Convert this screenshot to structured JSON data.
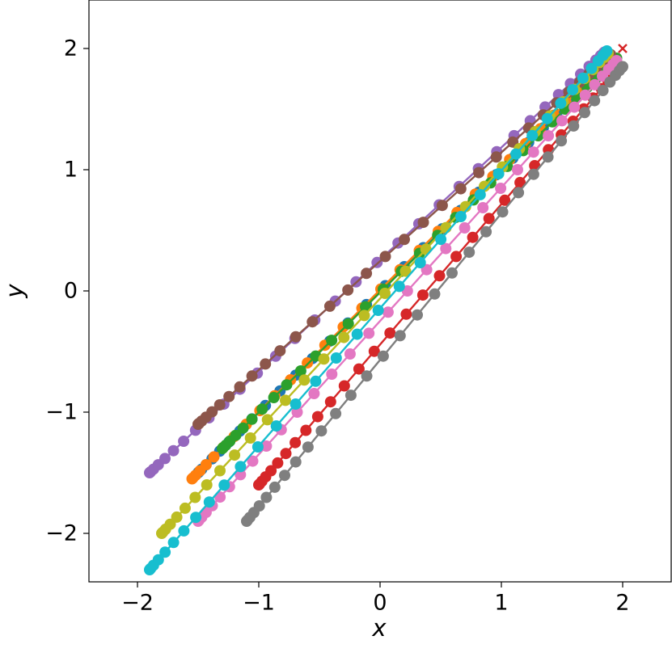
{
  "chart_data": {
    "type": "line",
    "title": "",
    "xlabel": "x",
    "ylabel": "y",
    "xlim": [
      -2.4,
      2.4
    ],
    "ylim": [
      -2.4,
      2.4
    ],
    "xticks": [
      -2,
      -1,
      0,
      1,
      2
    ],
    "yticks": [
      -2,
      -1,
      0,
      1,
      2
    ],
    "xtick_labels": [
      "−2",
      "−1",
      "0",
      "1",
      "2"
    ],
    "ytick_labels": [
      "−2",
      "−1",
      "0",
      "1",
      "2"
    ],
    "grid": false,
    "legend": "none",
    "target": {
      "x": 2.0,
      "y": 2.0,
      "marker": "x",
      "color": "#d62728"
    },
    "series": [
      {
        "color": "#1f77b4",
        "start": [
          -1.5,
          -1.5
        ],
        "end": [
          1.9,
          1.9
        ]
      },
      {
        "color": "#ff7f0e",
        "start": [
          -1.55,
          -1.55
        ],
        "end": [
          1.88,
          1.9
        ]
      },
      {
        "color": "#2ca02c",
        "start": [
          -1.3,
          -1.3
        ],
        "end": [
          1.95,
          1.92
        ]
      },
      {
        "color": "#d62728",
        "start": [
          -1.0,
          -1.6
        ],
        "end": [
          1.98,
          1.85
        ]
      },
      {
        "color": "#9467bd",
        "start": [
          -1.9,
          -1.5
        ],
        "end": [
          1.85,
          1.97
        ]
      },
      {
        "color": "#8c564b",
        "start": [
          -1.5,
          -1.1
        ],
        "end": [
          1.9,
          1.95
        ]
      },
      {
        "color": "#e377c2",
        "start": [
          -1.5,
          -1.9
        ],
        "end": [
          1.95,
          1.9
        ]
      },
      {
        "color": "#7f7f7f",
        "start": [
          -1.1,
          -1.9
        ],
        "end": [
          2.0,
          1.85
        ]
      },
      {
        "color": "#bcbd22",
        "start": [
          -1.8,
          -2.0
        ],
        "end": [
          1.88,
          1.96
        ]
      },
      {
        "color": "#17becf",
        "start": [
          -1.9,
          -2.3
        ],
        "end": [
          1.87,
          1.98
        ]
      }
    ]
  }
}
